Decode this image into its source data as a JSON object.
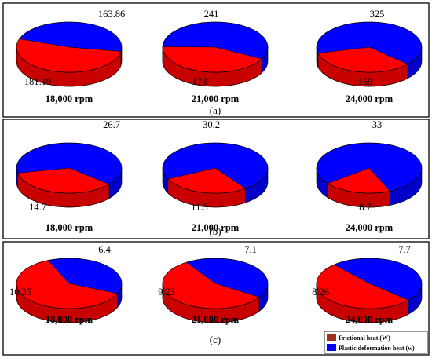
{
  "chart_data": [
    {
      "panel": "(a)",
      "type": "pie",
      "pies": [
        {
          "title": "18,000 rpm",
          "frictional": 181.19,
          "plastic": 163.86,
          "labels": [
            "181.19",
            "163.86"
          ]
        },
        {
          "title": "21,000 rpm",
          "frictional": 178,
          "plastic": 241,
          "labels": [
            "178",
            "241"
          ]
        },
        {
          "title": "24,000 rpm",
          "frictional": 169,
          "plastic": 325,
          "labels": [
            "169",
            "325"
          ]
        }
      ]
    },
    {
      "panel": "(b)",
      "type": "pie",
      "pies": [
        {
          "title": "18,000 rpm",
          "frictional": 14.7,
          "plastic": 26.7,
          "labels": [
            "14.7",
            "26.7"
          ]
        },
        {
          "title": "21,000 rpm",
          "frictional": 11.5,
          "plastic": 30.2,
          "labels": [
            "11.5",
            "30.2"
          ]
        },
        {
          "title": "24,000 rpm",
          "frictional": 8.7,
          "plastic": 33,
          "labels": [
            "8.7",
            "33"
          ]
        }
      ]
    },
    {
      "panel": "(c)",
      "type": "pie",
      "pies": [
        {
          "title": "18,000 rpm",
          "frictional": 10.35,
          "plastic": 6.4,
          "labels": [
            "10.35",
            "6.4"
          ]
        },
        {
          "title": "21,000 rpm",
          "frictional": 9.23,
          "plastic": 7.1,
          "labels": [
            "9.23",
            "7.1"
          ]
        },
        {
          "title": "24,000 rpm",
          "frictional": 8.26,
          "plastic": 7.7,
          "labels": [
            "8.26",
            "7.7"
          ]
        }
      ]
    }
  ],
  "legend": [
    {
      "label": "Frictional heat (W)",
      "color": "#a0301e"
    },
    {
      "label": "Plastic deformation heat (w)",
      "color": "#0000ff"
    }
  ],
  "colors": {
    "frictional_top": "#ff0000",
    "frictional_side": "#c80000",
    "plastic_top": "#0000ff",
    "plastic_side": "#0000c8",
    "border": "#000000"
  }
}
